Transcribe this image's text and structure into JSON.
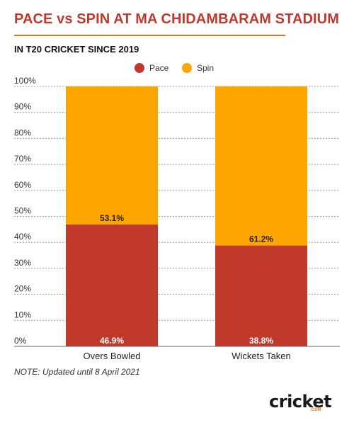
{
  "header": {
    "title": "PACE vs SPIN AT MA CHIDAMBARAM STADIUM",
    "subtitle": "IN T20 CRICKET SINCE 2019"
  },
  "footer": {
    "note": "NOTE: Updated until 8 April 2021",
    "logo_text": "cricket",
    "logo_sub": ".COM"
  },
  "colors": {
    "pace": "#c0392b",
    "spin": "#ffa500",
    "title": "#c0392b",
    "rule": "#e8731c"
  },
  "chart_data": {
    "type": "bar",
    "stacked": true,
    "normalized_percent": true,
    "categories": [
      "Overs Bowled",
      "Wickets Taken"
    ],
    "series": [
      {
        "name": "Pace",
        "values": [
          46.9,
          38.8
        ],
        "labels": [
          "46.9%",
          "38.8%"
        ]
      },
      {
        "name": "Spin",
        "values": [
          53.1,
          61.2
        ],
        "labels": [
          "53.1%",
          "61.2%"
        ]
      }
    ],
    "yticks": [
      "0%",
      "10%",
      "20%",
      "30%",
      "40%",
      "50%",
      "60%",
      "70%",
      "80%",
      "90%",
      "100%"
    ],
    "ylim": [
      0,
      100
    ],
    "grid": true,
    "legend_position": "top-center"
  }
}
